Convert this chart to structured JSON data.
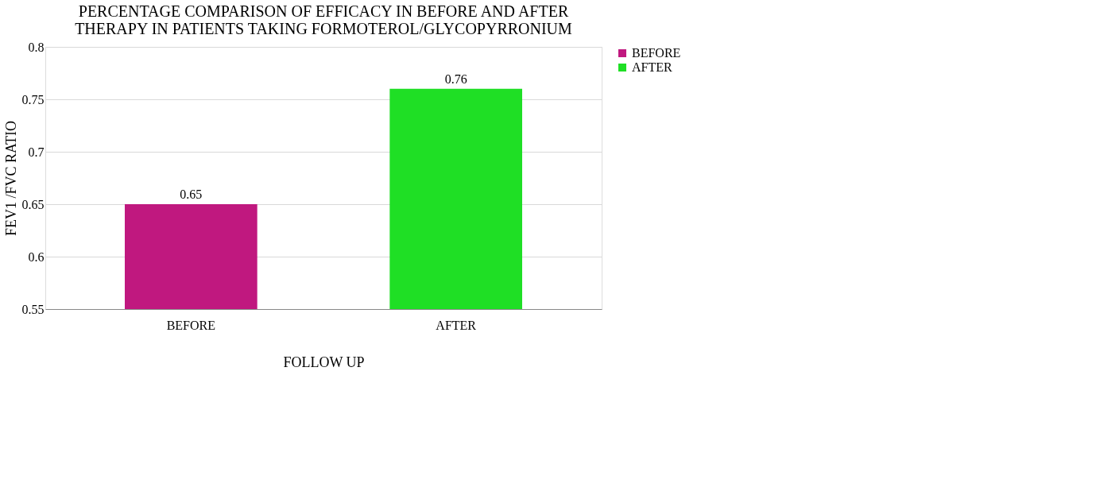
{
  "chart_data": {
    "type": "bar",
    "title": "PERCENTAGE COMPARISON OF EFFICACY IN BEFORE AND AFTER THERAPY IN PATIENTS TAKING FORMOTEROL/GLYCOPYRRONIUM",
    "xlabel": "FOLLOW UP",
    "ylabel": "FEV1 /FVC RATIO",
    "categories": [
      "BEFORE",
      "AFTER"
    ],
    "series": [
      {
        "name": "BEFORE",
        "color": "#c0187f",
        "values": [
          0.65,
          null
        ]
      },
      {
        "name": "AFTER",
        "color": "#1fdf25",
        "values": [
          null,
          0.76
        ]
      }
    ],
    "ylim": [
      0.55,
      0.8
    ],
    "yticks": [
      0.55,
      0.6,
      0.65,
      0.7,
      0.75,
      0.8
    ],
    "grid": "y",
    "legend": "right",
    "data_labels": true
  }
}
